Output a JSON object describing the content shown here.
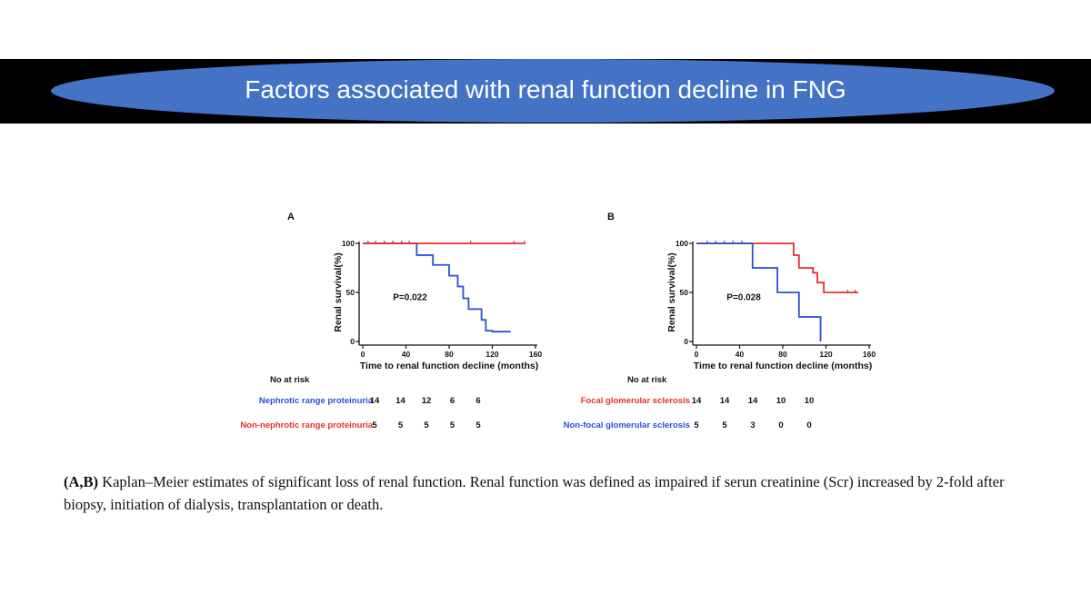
{
  "slide": {
    "title": "Factors associated with renal function decline in FNG",
    "caption_bold": "(A,B)",
    "caption_text": " Kaplan–Meier estimates of significant loss of renal function. Renal function was defined as impaired if serun creatinine (Scr) increased by 2-fold after biopsy, initiation of dialysis, transplantation or death."
  },
  "colors": {
    "band": "#000000",
    "ellipse": "#4472c4",
    "blue": "#2b4fd8",
    "red": "#e8302a"
  },
  "chart_data": [
    {
      "panel": "A",
      "type": "line",
      "xlabel": "Time to renal function decline (months)",
      "ylabel": "Renal survival(%)",
      "xticks": [
        0,
        40,
        80,
        120,
        160
      ],
      "yticks": [
        0,
        50,
        100
      ],
      "xlim": [
        0,
        160
      ],
      "ylim": [
        0,
        100
      ],
      "annotation": "P=0.022",
      "risk_header": "No at risk",
      "series": [
        {
          "name": "Nephrotic range proteinuria",
          "color": "#2b4fd8",
          "x": [
            0,
            50,
            50,
            65,
            65,
            80,
            80,
            88,
            88,
            93,
            93,
            98,
            98,
            110,
            110,
            114,
            114,
            120,
            120,
            137
          ],
          "y": [
            100,
            100,
            88,
            88,
            78,
            78,
            67,
            67,
            56,
            56,
            44,
            44,
            33,
            33,
            22,
            22,
            11,
            11,
            10,
            10
          ],
          "censored_x": [
            5,
            12,
            20,
            28,
            36,
            43
          ],
          "censored_y": [
            100,
            100,
            100,
            100,
            100,
            100
          ],
          "at_risk": [
            "14",
            "14",
            "12",
            "6",
            "6"
          ]
        },
        {
          "name": "Non-nephrotic range proteinuria",
          "color": "#e8302a",
          "x": [
            0,
            150
          ],
          "y": [
            100,
            100
          ],
          "censored_x": [
            100,
            140,
            150
          ],
          "censored_y": [
            100,
            100,
            100
          ],
          "at_risk": [
            "5",
            "5",
            "5",
            "5",
            "5"
          ]
        }
      ]
    },
    {
      "panel": "B",
      "type": "line",
      "xlabel": "Time to renal function decline (months)",
      "ylabel": "Renal survival(%)",
      "xticks": [
        0,
        40,
        80,
        120,
        160
      ],
      "yticks": [
        0,
        50,
        100
      ],
      "xlim": [
        0,
        160
      ],
      "ylim": [
        0,
        100
      ],
      "annotation": "P=0.028",
      "risk_header": "No at risk",
      "series": [
        {
          "name": "Focal glomerular sclerosis",
          "color": "#e8302a",
          "x": [
            0,
            90,
            90,
            95,
            95,
            108,
            108,
            112,
            112,
            118,
            118,
            150
          ],
          "y": [
            100,
            100,
            88,
            88,
            75,
            75,
            70,
            70,
            60,
            60,
            50,
            50
          ],
          "censored_x": [
            140,
            147
          ],
          "censored_y": [
            50,
            50
          ],
          "at_risk": [
            "14",
            "14",
            "14",
            "10",
            "10"
          ]
        },
        {
          "name": "Non-focal glomerular sclerosis",
          "color": "#2b4fd8",
          "x": [
            0,
            52,
            52,
            75,
            75,
            95,
            95,
            115,
            115
          ],
          "y": [
            100,
            100,
            75,
            75,
            50,
            50,
            25,
            25,
            0
          ],
          "censored_x": [
            10,
            18,
            26,
            34,
            42
          ],
          "censored_y": [
            100,
            100,
            100,
            100,
            100
          ],
          "at_risk": [
            "5",
            "5",
            "3",
            "0",
            "0"
          ]
        }
      ]
    }
  ]
}
